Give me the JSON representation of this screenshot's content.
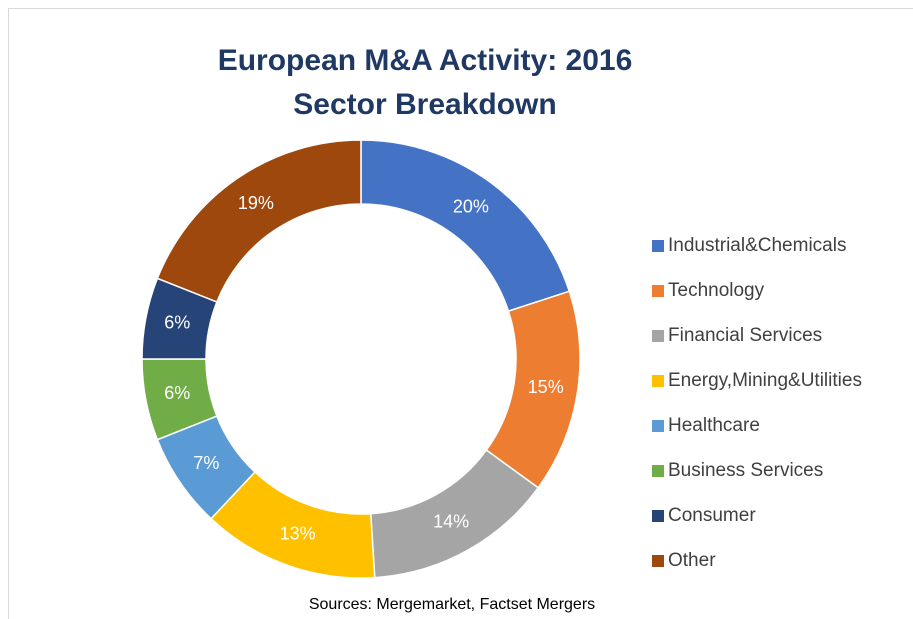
{
  "chart_data": {
    "type": "donut",
    "title": "European M&A Activity: 2016",
    "subtitle": "Sector Breakdown",
    "categories": [
      "Industrial&Chemicals",
      "Technology",
      "Financial Services",
      "Energy,Mining&Utilities",
      "Healthcare",
      "Business Services",
      "Consumer",
      "Other"
    ],
    "values": [
      20,
      15,
      14,
      13,
      7,
      6,
      6,
      19
    ],
    "value_labels": [
      "20%",
      "15%",
      "14%",
      "13%",
      "7%",
      "6%",
      "6%",
      "19%"
    ],
    "colors": [
      "#4472c4",
      "#ed7d31",
      "#a5a5a5",
      "#ffc000",
      "#5b9bd5",
      "#70ad47",
      "#264478",
      "#9e480e"
    ],
    "legend": "right",
    "source": "Sources: Mergemarket, Factset Mergers"
  }
}
